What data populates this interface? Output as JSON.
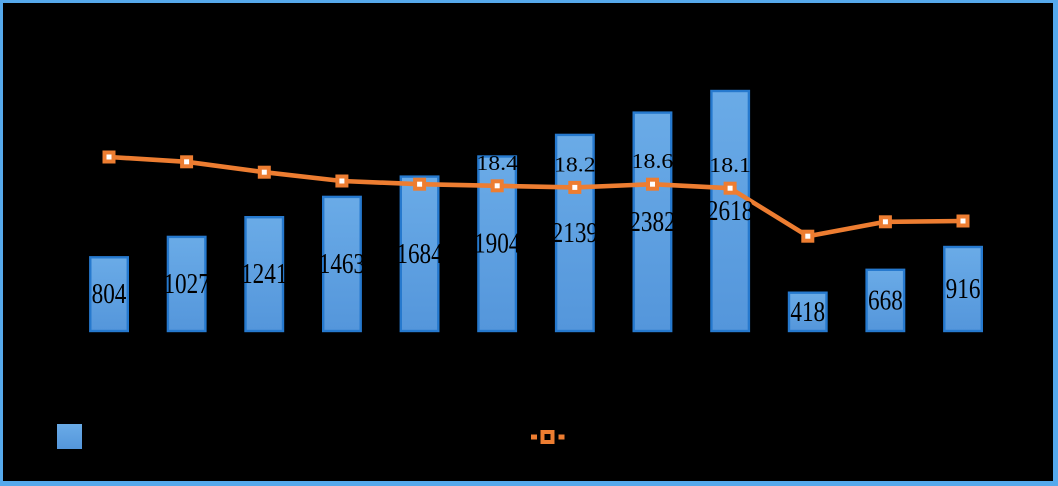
{
  "frame": {
    "background": "#000000",
    "border_color": "#56A9EC"
  },
  "colors": {
    "bar_fill_top": "#6AABE7",
    "bar_fill_bottom": "#5496DB",
    "bar_border": "#2679CE",
    "line": "#ED7D31",
    "marker_fill": "#ED7D31",
    "marker_center": "#FFFFFF",
    "legend_marker_center": "#000000",
    "data_label_text": "#000000"
  },
  "chart_data": {
    "type": "bar",
    "combo": "bar+line",
    "bar_series": {
      "name": "bar-series",
      "type": "bar",
      "color": "#5B9FE0",
      "values": [
        804,
        1027,
        1241,
        1463,
        1684,
        1904,
        2139,
        2382,
        2618,
        418,
        668,
        916
      ],
      "data_labels": [
        "804",
        "1027",
        "1241",
        "1463",
        "1684",
        "1904",
        "2139",
        "2382",
        "2618",
        "418",
        "668",
        "916"
      ]
    },
    "line_series": {
      "name": "line-series",
      "type": "line",
      "color": "#ED7D31",
      "marker": "square-with-white-center",
      "values": [
        22.0,
        21.4,
        20.1,
        19.0,
        18.6,
        18.4,
        18.2,
        18.6,
        18.1,
        12.1,
        13.9,
        14.0
      ],
      "data_labels": [
        "",
        "",
        "",
        "",
        "",
        "18.4",
        "18.2",
        "18.6",
        "18.1",
        "",
        "",
        ""
      ]
    },
    "axes": {
      "primary_ylim": [
        0,
        3000
      ],
      "gridlines": false,
      "axis_lines_visible": false,
      "tick_labels_visible": false
    },
    "legend_position": "bottom"
  },
  "legend": {
    "items": [
      {
        "swatch": "bar-square"
      },
      {
        "swatch": "line-with-marker"
      }
    ]
  }
}
